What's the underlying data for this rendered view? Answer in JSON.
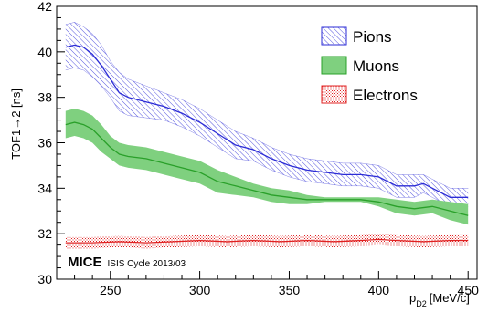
{
  "chart_data": {
    "type": "area",
    "xlabel": "p",
    "xlabel_sub": "D2",
    "xlabel_unit": "[MeV/c]",
    "ylabel": "TOF1→2 [ns]",
    "xlim": [
      220,
      455
    ],
    "ylim": [
      30,
      42
    ],
    "xticks": [
      250,
      300,
      350,
      400,
      450
    ],
    "yticks": [
      30,
      32,
      34,
      36,
      38,
      40,
      42
    ],
    "legend_position": "top-right",
    "annotation": {
      "experiment": "MICE",
      "run": "ISIS Cycle 2013/03"
    },
    "colors": {
      "pions": "#2b2bd6",
      "muons": "#2aa02a",
      "muons_fill": "#7fd07f",
      "electrons": "#e02020"
    },
    "series": [
      {
        "name": "Pions",
        "x": [
          225,
          230,
          235,
          240,
          245,
          250,
          255,
          260,
          270,
          280,
          290,
          300,
          310,
          320,
          330,
          340,
          350,
          360,
          370,
          380,
          390,
          400,
          410,
          420,
          425,
          430,
          440,
          450
        ],
        "y": [
          40.2,
          40.3,
          40.2,
          39.9,
          39.4,
          38.8,
          38.2,
          38.0,
          37.8,
          37.6,
          37.3,
          36.9,
          36.4,
          35.9,
          35.7,
          35.3,
          35.0,
          34.8,
          34.7,
          34.6,
          34.6,
          34.5,
          34.1,
          34.1,
          34.2,
          34.0,
          33.6,
          33.6
        ],
        "upper": [
          41.2,
          41.3,
          41.1,
          40.8,
          40.3,
          39.6,
          39.1,
          38.8,
          38.5,
          38.2,
          37.9,
          37.5,
          37.0,
          36.5,
          36.2,
          35.8,
          35.5,
          35.3,
          35.2,
          35.1,
          35.1,
          35.0,
          34.6,
          34.6,
          34.6,
          34.4,
          34.0,
          34.0
        ],
        "lower": [
          39.2,
          39.3,
          39.2,
          38.9,
          38.5,
          38.0,
          37.4,
          37.2,
          37.1,
          37.0,
          36.7,
          36.3,
          35.8,
          35.3,
          35.2,
          34.8,
          34.5,
          34.3,
          34.2,
          34.1,
          34.1,
          34.0,
          33.6,
          33.6,
          33.8,
          33.6,
          33.2,
          33.2
        ]
      },
      {
        "name": "Muons",
        "x": [
          225,
          230,
          235,
          240,
          245,
          250,
          255,
          260,
          270,
          280,
          290,
          300,
          310,
          320,
          330,
          340,
          350,
          360,
          370,
          380,
          390,
          400,
          410,
          420,
          430,
          440,
          450
        ],
        "y": [
          36.8,
          36.9,
          36.8,
          36.6,
          36.2,
          35.8,
          35.5,
          35.4,
          35.3,
          35.1,
          34.9,
          34.7,
          34.3,
          34.1,
          33.9,
          33.7,
          33.6,
          33.5,
          33.5,
          33.5,
          33.5,
          33.4,
          33.2,
          33.1,
          33.2,
          33.0,
          32.8
        ],
        "upper": [
          37.4,
          37.5,
          37.4,
          37.2,
          36.8,
          36.3,
          36.0,
          35.9,
          35.8,
          35.6,
          35.4,
          35.2,
          34.8,
          34.5,
          34.2,
          34.0,
          33.9,
          33.7,
          33.6,
          33.6,
          33.6,
          33.6,
          33.5,
          33.4,
          33.5,
          33.4,
          33.3
        ],
        "lower": [
          36.2,
          36.3,
          36.2,
          36.0,
          35.6,
          35.3,
          35.0,
          34.9,
          34.8,
          34.6,
          34.4,
          34.2,
          33.8,
          33.7,
          33.6,
          33.4,
          33.3,
          33.3,
          33.4,
          33.4,
          33.4,
          33.2,
          32.9,
          32.8,
          32.9,
          32.6,
          32.4
        ]
      },
      {
        "name": "Electrons",
        "x": [
          225,
          240,
          255,
          270,
          285,
          300,
          315,
          330,
          345,
          360,
          375,
          390,
          400,
          410,
          425,
          440,
          450
        ],
        "y": [
          31.6,
          31.6,
          31.65,
          31.6,
          31.65,
          31.7,
          31.65,
          31.7,
          31.65,
          31.7,
          31.65,
          31.7,
          31.75,
          31.7,
          31.65,
          31.7,
          31.7
        ],
        "upper": [
          31.85,
          31.85,
          31.9,
          31.85,
          31.9,
          31.95,
          31.9,
          31.95,
          31.9,
          31.95,
          31.9,
          31.95,
          32.0,
          31.95,
          31.9,
          31.95,
          31.95
        ],
        "lower": [
          31.35,
          31.35,
          31.4,
          31.35,
          31.4,
          31.45,
          31.4,
          31.45,
          31.4,
          31.45,
          31.4,
          31.45,
          31.5,
          31.45,
          31.4,
          31.45,
          31.45
        ]
      }
    ]
  }
}
